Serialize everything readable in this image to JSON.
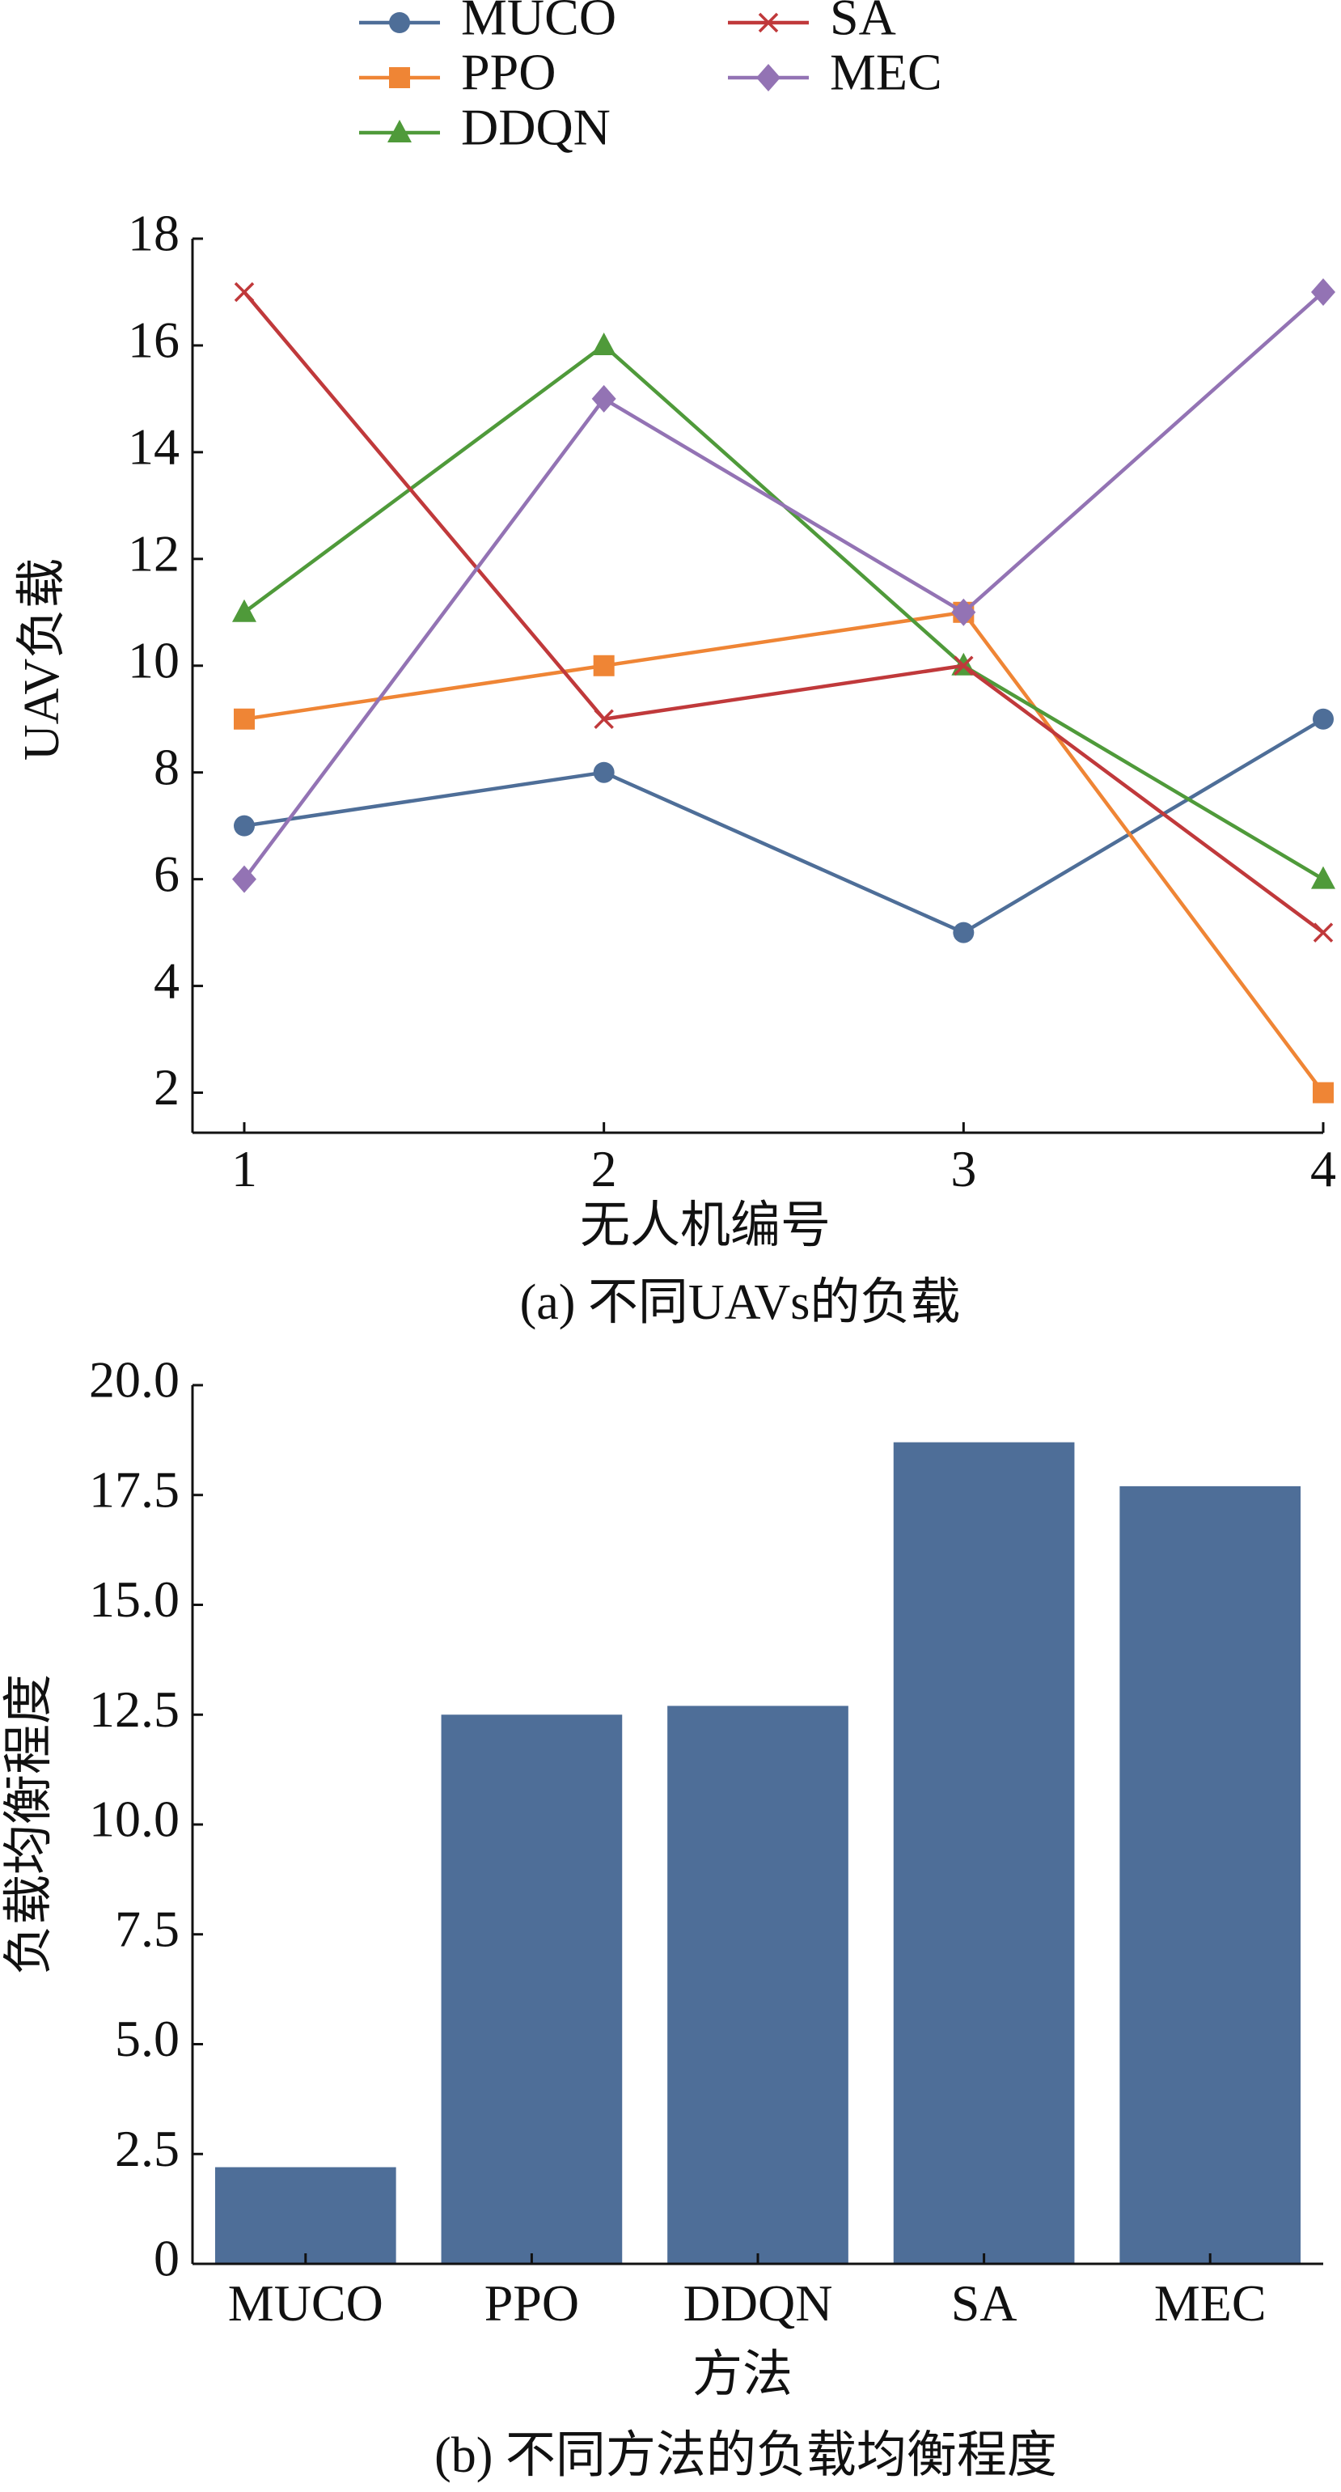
{
  "chart_data": [
    {
      "type": "line",
      "caption": "(a) 不同UAVs的负载",
      "xlabel": "无人机编号",
      "ylabel": "UAV负载",
      "x": [
        1,
        2,
        3,
        4
      ],
      "xticks": [
        "1",
        "2",
        "3",
        "4"
      ],
      "ylim": [
        1.25,
        18
      ],
      "yticks": [
        2,
        4,
        6,
        8,
        10,
        12,
        14,
        16,
        18
      ],
      "grid": false,
      "legend_position": "top",
      "series": [
        {
          "name": "MUCO",
          "values": [
            7,
            8,
            5,
            9
          ],
          "color": "#4e6e98",
          "marker": "circle"
        },
        {
          "name": "PPO",
          "values": [
            9,
            10,
            11,
            2
          ],
          "color": "#ef8535",
          "marker": "square"
        },
        {
          "name": "DDQN",
          "values": [
            11,
            16,
            10,
            6
          ],
          "color": "#4f9a3a",
          "marker": "triangle"
        },
        {
          "name": "SA",
          "values": [
            17,
            9,
            10,
            5
          ],
          "color": "#c0393b",
          "marker": "x"
        },
        {
          "name": "MEC",
          "values": [
            6,
            15,
            11,
            17
          ],
          "color": "#9373b4",
          "marker": "diamond"
        }
      ]
    },
    {
      "type": "bar",
      "caption": "(b) 不同方法的负载均衡程度",
      "xlabel": "方法",
      "ylabel": "负载均衡程度",
      "categories": [
        "MUCO",
        "PPO",
        "DDQN",
        "SA",
        "MEC"
      ],
      "values": [
        2.2,
        12.5,
        12.7,
        18.7,
        17.7
      ],
      "ylim": [
        0,
        20
      ],
      "yticks": [
        "0",
        "2.5",
        "5.0",
        "7.5",
        "10.0",
        "12.5",
        "15.0",
        "17.5",
        "20.0"
      ],
      "color": "#4e6e98",
      "grid": false
    }
  ]
}
